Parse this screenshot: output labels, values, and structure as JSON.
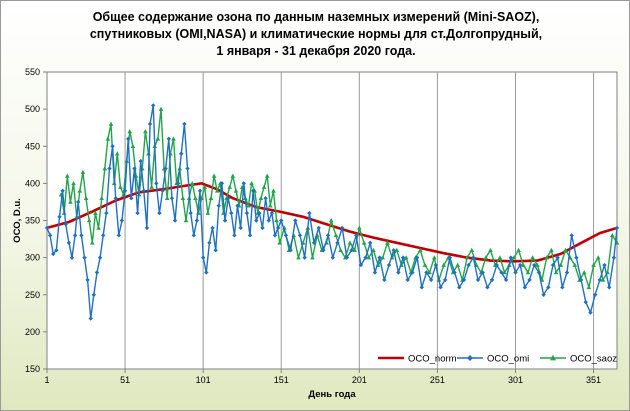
{
  "title_lines": [
    "Общее содержание озона по данным наземных измерений (Mini-SAOZ),",
    "спутниковых (OMI,NASA) и климатические  нормы для ст.Долгопрудный,",
    "1 января - 31 декабря 2020 года."
  ],
  "chart_data": {
    "type": "line",
    "title": "Общее содержание озона по данным наземных измерений (Mini-SAOZ), спутниковых (OMI,NASA) и климатические нормы для ст.Долгопрудный, 1 января - 31 декабря 2020 года.",
    "xlabel": "День года",
    "ylabel": "ОСО, D.u.",
    "xlim": [
      1,
      366
    ],
    "ylim": [
      150,
      550
    ],
    "x_ticks": [
      1,
      51,
      101,
      151,
      201,
      251,
      301,
      351
    ],
    "y_ticks": [
      150,
      200,
      250,
      300,
      350,
      400,
      450,
      500,
      550
    ],
    "grid": "vertical",
    "legend_position": "bottom-right",
    "series": [
      {
        "name": "OCO_norm",
        "color": "#c00000",
        "marker": "none",
        "x": [
          1,
          15,
          30,
          45,
          60,
          75,
          90,
          100,
          110,
          120,
          135,
          150,
          165,
          180,
          195,
          210,
          225,
          240,
          255,
          270,
          285,
          300,
          315,
          330,
          345,
          355,
          366
        ],
        "values": [
          340,
          348,
          362,
          377,
          388,
          392,
          397,
          400,
          392,
          380,
          368,
          362,
          355,
          345,
          335,
          327,
          320,
          313,
          306,
          300,
          296,
          295,
          296,
          305,
          322,
          333,
          340
        ]
      },
      {
        "name": "OCO_omi",
        "color": "#1f6fc5",
        "marker": "diamond",
        "x": [
          1,
          3,
          5,
          7,
          9,
          11,
          13,
          15,
          17,
          19,
          21,
          23,
          25,
          27,
          29,
          31,
          33,
          35,
          37,
          39,
          41,
          43,
          45,
          47,
          49,
          51,
          53,
          55,
          57,
          59,
          61,
          63,
          65,
          67,
          69,
          71,
          73,
          75,
          77,
          79,
          81,
          83,
          85,
          87,
          89,
          91,
          93,
          95,
          97,
          99,
          101,
          103,
          105,
          107,
          109,
          111,
          113,
          115,
          117,
          119,
          121,
          123,
          125,
          127,
          129,
          131,
          133,
          135,
          137,
          139,
          141,
          143,
          145,
          147,
          149,
          151,
          154,
          157,
          160,
          163,
          166,
          169,
          172,
          175,
          178,
          181,
          184,
          187,
          190,
          193,
          196,
          199,
          202,
          205,
          208,
          211,
          214,
          217,
          220,
          223,
          226,
          229,
          232,
          235,
          238,
          241,
          244,
          247,
          250,
          253,
          256,
          259,
          262,
          265,
          268,
          271,
          274,
          277,
          280,
          283,
          286,
          289,
          292,
          295,
          298,
          301,
          304,
          307,
          310,
          313,
          316,
          319,
          322,
          325,
          328,
          331,
          334,
          337,
          340,
          343,
          346,
          349,
          352,
          355,
          358,
          361,
          364,
          366
        ],
        "values": [
          340,
          330,
          305,
          310,
          355,
          390,
          345,
          320,
          300,
          330,
          375,
          330,
          300,
          270,
          218,
          250,
          280,
          300,
          330,
          360,
          420,
          450,
          380,
          330,
          350,
          390,
          460,
          380,
          420,
          360,
          430,
          390,
          340,
          480,
          505,
          400,
          360,
          390,
          420,
          460,
          380,
          350,
          400,
          440,
          480,
          420,
          360,
          330,
          350,
          390,
          300,
          280,
          320,
          340,
          310,
          370,
          400,
          350,
          380,
          360,
          330,
          370,
          340,
          400,
          360,
          330,
          390,
          350,
          360,
          340,
          380,
          350,
          360,
          330,
          340,
          350,
          330,
          310,
          350,
          330,
          300,
          360,
          320,
          340,
          310,
          330,
          300,
          320,
          340,
          300,
          310,
          330,
          290,
          300,
          320,
          280,
          300,
          270,
          290,
          310,
          280,
          300,
          270,
          280,
          300,
          260,
          280,
          270,
          290,
          260,
          270,
          300,
          280,
          260,
          270,
          290,
          300,
          270,
          280,
          260,
          270,
          290,
          280,
          270,
          300,
          280,
          290,
          260,
          270,
          290,
          280,
          250,
          260,
          290,
          300,
          260,
          280,
          330,
          300,
          270,
          240,
          226,
          250,
          270,
          290,
          260,
          300,
          340
        ]
      },
      {
        "name": "OCO_saoz",
        "color": "#21a548",
        "marker": "triangle",
        "x": [
          10,
          12,
          14,
          16,
          18,
          20,
          22,
          24,
          26,
          28,
          30,
          32,
          34,
          36,
          38,
          40,
          42,
          44,
          46,
          48,
          50,
          52,
          54,
          56,
          58,
          60,
          62,
          64,
          66,
          68,
          70,
          72,
          74,
          76,
          78,
          80,
          82,
          84,
          86,
          88,
          90,
          92,
          94,
          96,
          98,
          100,
          102,
          104,
          106,
          108,
          110,
          112,
          114,
          116,
          118,
          120,
          122,
          124,
          126,
          128,
          130,
          132,
          134,
          136,
          138,
          140,
          142,
          144,
          146,
          148,
          150,
          153,
          156,
          159,
          162,
          165,
          168,
          171,
          174,
          177,
          180,
          183,
          186,
          189,
          192,
          195,
          198,
          201,
          204,
          207,
          210,
          213,
          216,
          219,
          222,
          225,
          228,
          231,
          234,
          237,
          240,
          243,
          246,
          249,
          252,
          255,
          258,
          261,
          264,
          267,
          270,
          273,
          276,
          279,
          282,
          285,
          288,
          291,
          294,
          297,
          300,
          303,
          306,
          309,
          312,
          315,
          318,
          321,
          324,
          327,
          330,
          333,
          336,
          339,
          342,
          345,
          348,
          351,
          354,
          357,
          360,
          363,
          366
        ],
        "values": [
          385,
          360,
          410,
          375,
          400,
          355,
          390,
          415,
          380,
          350,
          320,
          360,
          340,
          380,
          420,
          460,
          480,
          400,
          440,
          395,
          385,
          430,
          470,
          450,
          410,
          385,
          420,
          470,
          440,
          395,
          450,
          460,
          500,
          420,
          380,
          440,
          460,
          400,
          420,
          380,
          350,
          380,
          400,
          380,
          360,
          380,
          395,
          360,
          380,
          410,
          390,
          400,
          360,
          380,
          395,
          410,
          390,
          370,
          395,
          380,
          370,
          400,
          390,
          360,
          380,
          395,
          410,
          370,
          390,
          350,
          320,
          340,
          310,
          330,
          300,
          320,
          340,
          300,
          330,
          310,
          320,
          350,
          330,
          310,
          300,
          320,
          310,
          340,
          320,
          300,
          310,
          290,
          300,
          320,
          300,
          310,
          290,
          300,
          280,
          300,
          310,
          290,
          280,
          300,
          270,
          290,
          300,
          280,
          290,
          270,
          300,
          310,
          290,
          280,
          300,
          310,
          290,
          300,
          280,
          290,
          300,
          310,
          290,
          280,
          300,
          290,
          270,
          300,
          310,
          280,
          290,
          310,
          300,
          290,
          270,
          280,
          260,
          290,
          300,
          270,
          280,
          330,
          320
        ]
      }
    ]
  }
}
